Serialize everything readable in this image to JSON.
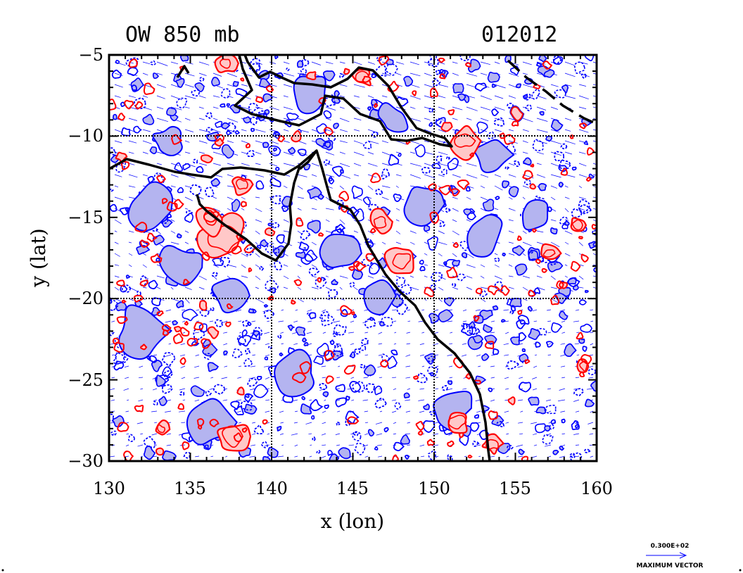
{
  "map": {
    "title_left": "OW 850 mb",
    "title_right": "012012",
    "xlabel": "x (lon)",
    "ylabel": "y (lat)",
    "lon_range": [
      130,
      160
    ],
    "lat_range": [
      -30,
      -5
    ],
    "x_ticks": [
      "130",
      "135",
      "140",
      "145",
      "150",
      "155",
      "160"
    ],
    "y_ticks": [
      "−5",
      "−10",
      "−15",
      "−20",
      "−25",
      "−30"
    ],
    "grid_lons": [
      140,
      150
    ],
    "grid_lats": [
      -10,
      -20
    ]
  },
  "legend": {
    "max_value": "0.300E+02",
    "label": "MAXIMUM VECTOR"
  },
  "colors": {
    "positive_contour": "#ff0000",
    "positive_fill": "#ffc8c8",
    "negative_contour": "#0000ff",
    "negative_fill": "#b4b4f0",
    "coastline": "#000000",
    "vectors": "#0000ff"
  }
}
